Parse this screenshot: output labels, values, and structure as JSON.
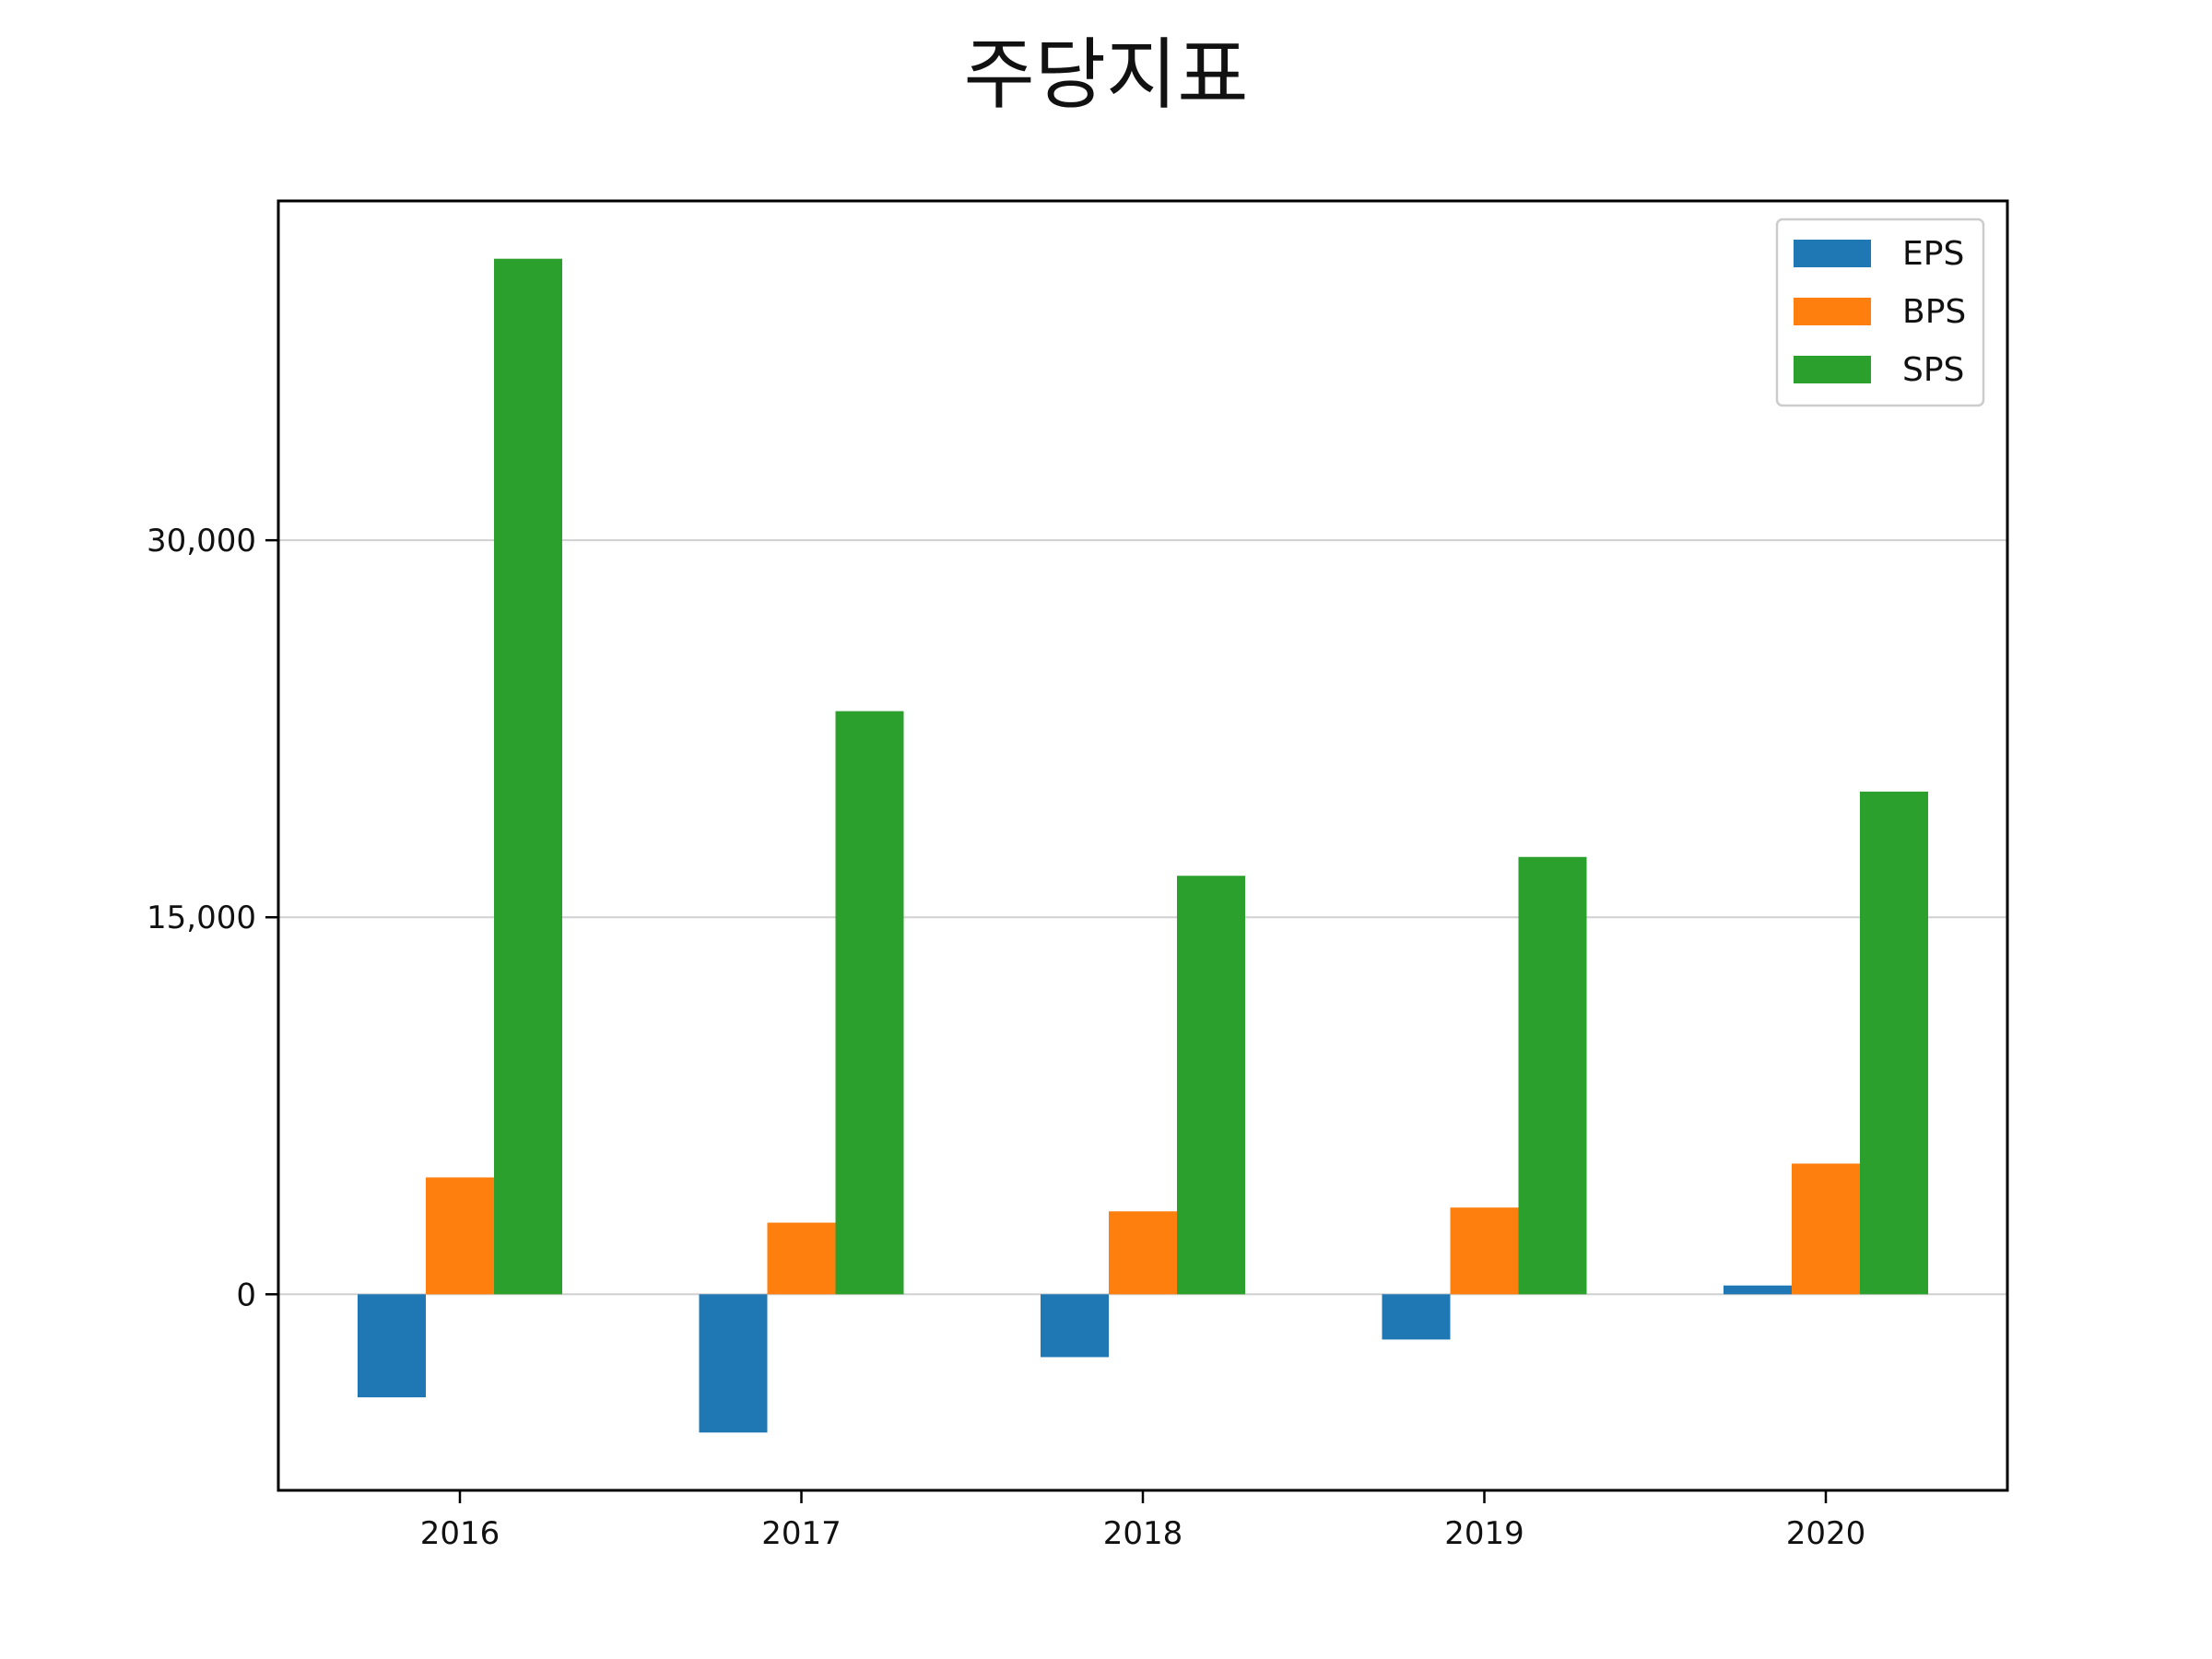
{
  "chart_data": {
    "type": "bar",
    "title": "주당지표",
    "xlabel": "",
    "ylabel": "",
    "categories": [
      "2016",
      "2017",
      "2018",
      "2019",
      "2020"
    ],
    "series": [
      {
        "name": "EPS",
        "color": "#1f77b4",
        "values": [
          -4100,
          -5500,
          -2500,
          -1800,
          350
        ]
      },
      {
        "name": "BPS",
        "color": "#ff7f0e",
        "values": [
          4650,
          2850,
          3300,
          3450,
          5200
        ]
      },
      {
        "name": "SPS",
        "color": "#2ca02c",
        "values": [
          41200,
          23200,
          16650,
          17400,
          20000
        ]
      }
    ],
    "ylim": [
      -7800,
      43500
    ],
    "yticks": [
      0,
      15000,
      30000
    ],
    "ytick_labels": [
      "0",
      "15,000",
      "30,000"
    ],
    "grid": "horizontal",
    "legend_position": "top-right"
  }
}
